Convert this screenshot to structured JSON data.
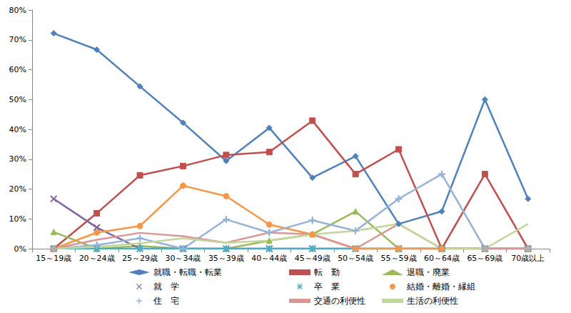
{
  "chart_data": {
    "type": "line",
    "categories": [
      "15～19歳",
      "20～24歳",
      "25～29歳",
      "30～34歳",
      "35～39歳",
      "40～44歳",
      "45～49歳",
      "50～54歳",
      "55～59歳",
      "60～64歳",
      "65～69歳",
      "70歳以上"
    ],
    "ylim": [
      0,
      80
    ],
    "yticks": [
      {
        "value": 0,
        "label": "0%"
      },
      {
        "value": 10,
        "label": "10%"
      },
      {
        "value": 20,
        "label": "20%"
      },
      {
        "value": 30,
        "label": "30%"
      },
      {
        "value": 40,
        "label": "40%"
      },
      {
        "value": 50,
        "label": "50%"
      },
      {
        "value": 60,
        "label": "60%"
      },
      {
        "value": 70,
        "label": "70%"
      },
      {
        "value": 80,
        "label": "80%"
      }
    ],
    "grid": false,
    "legend": "bottom",
    "series": [
      {
        "name": "就職・転職・転業",
        "color": "#4F81BD",
        "marker": "diamond",
        "values": [
          72.2,
          66.7,
          54.4,
          42.2,
          29.4,
          40.5,
          23.8,
          31.0,
          8.3,
          12.5,
          50.0,
          16.7
        ]
      },
      {
        "name": "転　勤",
        "color": "#C0504D",
        "marker": "square",
        "values": [
          0,
          11.9,
          24.6,
          27.7,
          31.4,
          32.4,
          42.9,
          25.0,
          33.3,
          0,
          25.0,
          0
        ]
      },
      {
        "name": "退職・廃業",
        "color": "#9BBB59",
        "marker": "triangle",
        "values": [
          5.6,
          0,
          0.9,
          0,
          0,
          2.7,
          4.8,
          12.5,
          0,
          0,
          0,
          0
        ]
      },
      {
        "name": "就　学",
        "color": "#8064A2",
        "marker": "x",
        "values": [
          16.7,
          7.1,
          0,
          0,
          0,
          0,
          0,
          0,
          0,
          0,
          0,
          0
        ]
      },
      {
        "name": "卒　業",
        "color": "#4BACC6",
        "marker": "star",
        "values": [
          0,
          0,
          0,
          0,
          0,
          0,
          0,
          0,
          0,
          0,
          0,
          0
        ]
      },
      {
        "name": "結婚・離婚・縁組",
        "color": "#F79646",
        "marker": "circle",
        "values": [
          0,
          5.4,
          7.6,
          21.1,
          17.6,
          8.1,
          4.8,
          0,
          0,
          0,
          0,
          0
        ]
      },
      {
        "name": "住　宅",
        "color": "#95B3D7",
        "marker": "plus",
        "values": [
          0,
          1.2,
          3.5,
          0,
          9.8,
          5.4,
          9.5,
          6.0,
          16.7,
          25.0,
          0,
          0
        ]
      },
      {
        "name": "交通の利便性",
        "color": "#D99694",
        "marker": "none",
        "values": [
          0,
          3.0,
          5.3,
          4.2,
          2.0,
          5.4,
          4.8,
          0,
          8.3,
          0,
          0,
          0
        ]
      },
      {
        "name": "生活の利便性",
        "color": "#C3D69B",
        "marker": "none",
        "values": [
          0,
          0.6,
          1.8,
          3.5,
          2.0,
          2.7,
          4.8,
          6.0,
          8.3,
          0,
          0,
          8.3
        ]
      }
    ]
  }
}
